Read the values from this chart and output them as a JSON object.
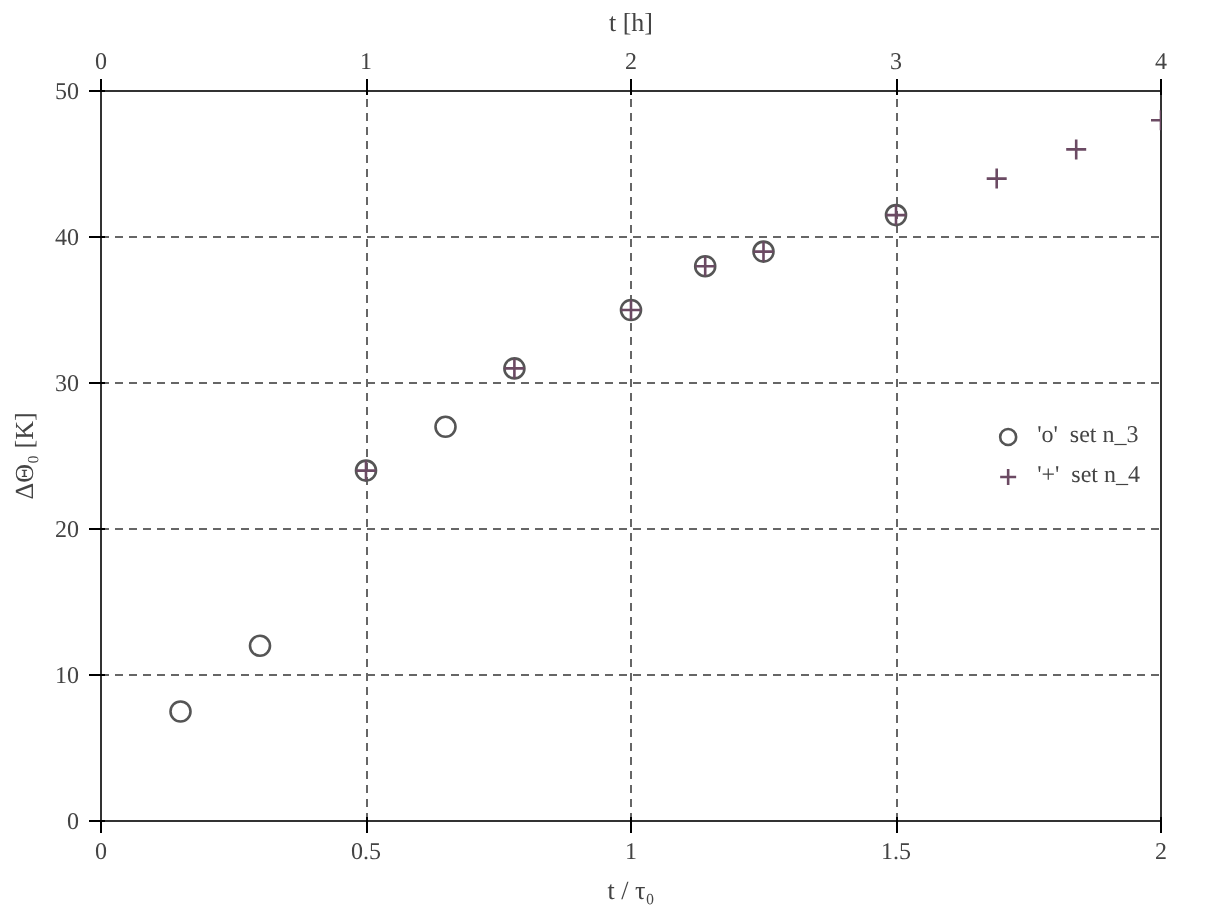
{
  "chart_data": {
    "type": "scatter",
    "xlabel": "t / τ₀",
    "ylabel": "ΔΘ₀ [K]",
    "x2label": "t [h]",
    "xlim": [
      0,
      2
    ],
    "xticks": [
      0,
      0.5,
      1,
      1.5,
      2
    ],
    "ylim": [
      0,
      50
    ],
    "yticks": [
      0,
      10,
      20,
      30,
      40,
      50
    ],
    "x2lim": [
      0,
      4
    ],
    "x2ticks": [
      0,
      1,
      2,
      3,
      4
    ],
    "grid": true,
    "legend": "right",
    "series": [
      {
        "name": "'o'  set n_3",
        "color": "#555555",
        "marker": "circle",
        "x": [
          0.15,
          0.3,
          0.5,
          0.65,
          0.78,
          1.0,
          1.14,
          1.25,
          1.5
        ],
        "values": [
          7.5,
          12,
          24,
          27,
          31,
          35,
          38,
          39,
          41.5
        ]
      },
      {
        "name": "'+'  set n_4",
        "color": "#6b4a63",
        "marker": "cross",
        "x": [
          0.5,
          0.78,
          1.0,
          1.14,
          1.25,
          1.5,
          1.69,
          1.84,
          2.0
        ],
        "values": [
          24,
          31,
          35,
          38,
          39,
          41.5,
          44,
          46,
          48
        ]
      }
    ]
  }
}
